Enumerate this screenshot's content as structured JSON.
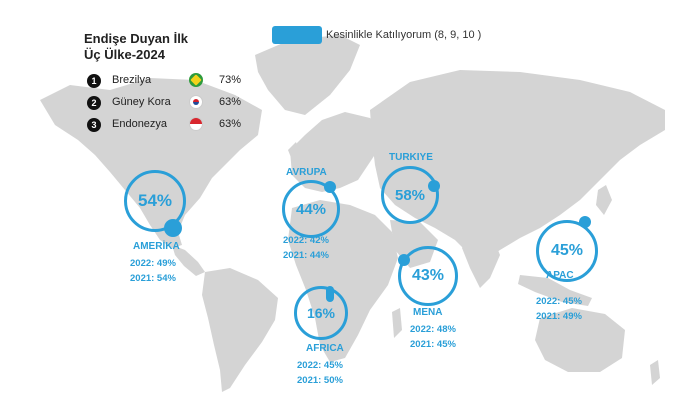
{
  "legend": {
    "label": "Kesinlikle Katılıyorum (8, 9, 10 )",
    "color": "#2a9fd8"
  },
  "panel": {
    "title": "Endişe Duyan İlk Üç Ülke-2024",
    "items": [
      {
        "rank": "1",
        "country": "Brezilya",
        "value": "73%",
        "flag": "brazil-flag-icon"
      },
      {
        "rank": "2",
        "country": "Güney Kora",
        "value": "63%",
        "flag": "south-korea-flag-icon"
      },
      {
        "rank": "3",
        "country": "Endonezya",
        "value": "63%",
        "flag": "indonesia-flag-icon"
      }
    ]
  },
  "regions": {
    "amerika": {
      "value": "54%",
      "name": "AMERİKA",
      "y2022": "2022: 49%",
      "y2021": "2021: 54%"
    },
    "avrupa": {
      "value": "44%",
      "name": "AVRUPA",
      "y2022": "2022: 42%",
      "y2021": "2021: 44%"
    },
    "turkiye": {
      "value": "58%",
      "name": "TURKIYE"
    },
    "mena": {
      "value": "43%",
      "name": "MENA",
      "y2022": "2022: 48%",
      "y2021": "2021: 45%"
    },
    "africa": {
      "value": "16%",
      "name": "AFRICA",
      "y2022": "2022: 45%",
      "y2021": "2021: 50%"
    },
    "apac": {
      "value": "45%",
      "name": "APAC",
      "y2022": "2022: 45%",
      "y2021": "2021: 49%"
    }
  },
  "colors": {
    "accent": "#2a9fd8",
    "land": "#d4d4d4"
  }
}
